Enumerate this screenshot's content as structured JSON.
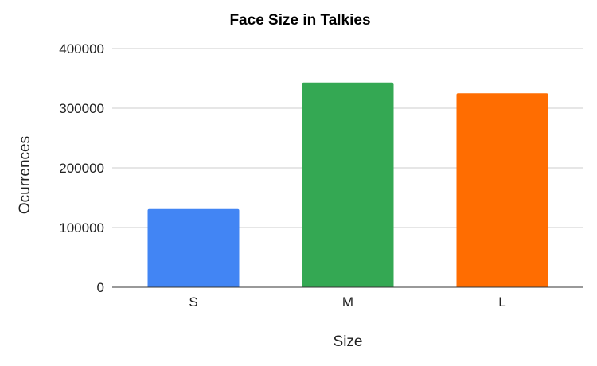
{
  "chart_data": {
    "type": "bar",
    "title": "Face Size in Talkies",
    "xlabel": "Size",
    "ylabel": "Ocurrences",
    "categories": [
      "S",
      "M",
      "L"
    ],
    "values": [
      131000,
      343000,
      325000
    ],
    "colors": [
      "#4285f4",
      "#34a853",
      "#ff6d01"
    ],
    "ylim": [
      0,
      400000
    ],
    "yticks": [
      0,
      100000,
      200000,
      300000,
      400000
    ],
    "ytick_labels": [
      "0",
      "100000",
      "200000",
      "300000",
      "400000"
    ],
    "grid": true,
    "legend": "none"
  }
}
